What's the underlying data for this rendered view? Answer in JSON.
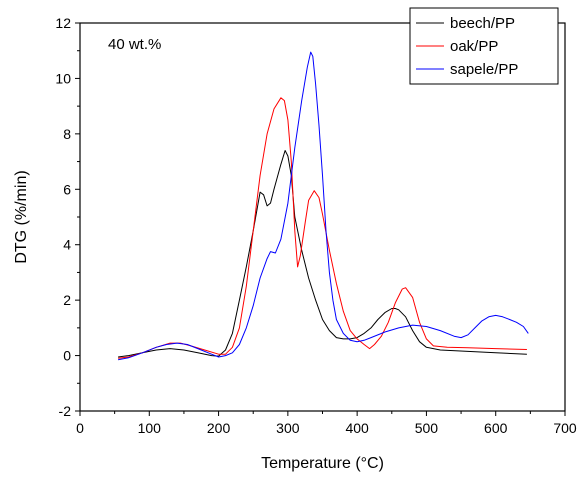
{
  "chart_data": {
    "type": "line",
    "title": "",
    "xlabel": "Temperature (°C)",
    "ylabel": "DTG (%/min)",
    "xlim": [
      0,
      700
    ],
    "ylim": [
      -2,
      12
    ],
    "xticks": [
      0,
      100,
      200,
      300,
      400,
      500,
      600,
      700
    ],
    "yticks": [
      -2,
      0,
      2,
      4,
      6,
      8,
      10,
      12
    ],
    "annotation": "40 wt.%",
    "legend_position": "top-right",
    "grid": false,
    "series": [
      {
        "name": "beech/PP",
        "color": "#000000",
        "points": [
          [
            55,
            -0.05
          ],
          [
            70,
            0.0
          ],
          [
            90,
            0.1
          ],
          [
            110,
            0.2
          ],
          [
            130,
            0.25
          ],
          [
            150,
            0.2
          ],
          [
            170,
            0.1
          ],
          [
            190,
            0.0
          ],
          [
            200,
            -0.02
          ],
          [
            210,
            0.2
          ],
          [
            220,
            0.8
          ],
          [
            230,
            2.0
          ],
          [
            240,
            3.2
          ],
          [
            250,
            4.5
          ],
          [
            260,
            5.9
          ],
          [
            265,
            5.8
          ],
          [
            270,
            5.4
          ],
          [
            275,
            5.5
          ],
          [
            280,
            6.0
          ],
          [
            290,
            6.9
          ],
          [
            296,
            7.4
          ],
          [
            300,
            7.2
          ],
          [
            305,
            6.5
          ],
          [
            310,
            5.0
          ],
          [
            320,
            3.8
          ],
          [
            330,
            2.8
          ],
          [
            340,
            2.0
          ],
          [
            350,
            1.3
          ],
          [
            360,
            0.9
          ],
          [
            370,
            0.65
          ],
          [
            380,
            0.6
          ],
          [
            390,
            0.6
          ],
          [
            400,
            0.65
          ],
          [
            410,
            0.8
          ],
          [
            420,
            1.0
          ],
          [
            430,
            1.3
          ],
          [
            440,
            1.55
          ],
          [
            450,
            1.7
          ],
          [
            455,
            1.7
          ],
          [
            460,
            1.65
          ],
          [
            470,
            1.4
          ],
          [
            480,
            0.9
          ],
          [
            490,
            0.5
          ],
          [
            500,
            0.3
          ],
          [
            520,
            0.2
          ],
          [
            560,
            0.15
          ],
          [
            600,
            0.1
          ],
          [
            645,
            0.05
          ]
        ]
      },
      {
        "name": "oak/PP",
        "color": "#ff0000",
        "points": [
          [
            55,
            -0.1
          ],
          [
            70,
            -0.05
          ],
          [
            90,
            0.1
          ],
          [
            110,
            0.3
          ],
          [
            130,
            0.45
          ],
          [
            145,
            0.45
          ],
          [
            160,
            0.35
          ],
          [
            180,
            0.2
          ],
          [
            200,
            0.05
          ],
          [
            210,
            0.05
          ],
          [
            220,
            0.3
          ],
          [
            230,
            1.0
          ],
          [
            240,
            2.5
          ],
          [
            250,
            4.5
          ],
          [
            260,
            6.5
          ],
          [
            270,
            8.0
          ],
          [
            280,
            8.9
          ],
          [
            290,
            9.3
          ],
          [
            295,
            9.2
          ],
          [
            300,
            8.5
          ],
          [
            305,
            7.0
          ],
          [
            310,
            4.5
          ],
          [
            314,
            3.2
          ],
          [
            318,
            3.6
          ],
          [
            325,
            4.8
          ],
          [
            330,
            5.6
          ],
          [
            338,
            5.95
          ],
          [
            345,
            5.7
          ],
          [
            350,
            5.1
          ],
          [
            360,
            3.8
          ],
          [
            370,
            2.6
          ],
          [
            380,
            1.6
          ],
          [
            390,
            0.9
          ],
          [
            400,
            0.6
          ],
          [
            410,
            0.4
          ],
          [
            418,
            0.25
          ],
          [
            425,
            0.4
          ],
          [
            435,
            0.7
          ],
          [
            445,
            1.2
          ],
          [
            455,
            1.9
          ],
          [
            465,
            2.4
          ],
          [
            470,
            2.45
          ],
          [
            480,
            2.1
          ],
          [
            490,
            1.2
          ],
          [
            500,
            0.6
          ],
          [
            510,
            0.35
          ],
          [
            530,
            0.3
          ],
          [
            560,
            0.28
          ],
          [
            600,
            0.25
          ],
          [
            645,
            0.22
          ]
        ]
      },
      {
        "name": "sapele/PP",
        "color": "#0000ff",
        "points": [
          [
            55,
            -0.15
          ],
          [
            70,
            -0.08
          ],
          [
            90,
            0.1
          ],
          [
            110,
            0.3
          ],
          [
            125,
            0.4
          ],
          [
            140,
            0.45
          ],
          [
            155,
            0.4
          ],
          [
            170,
            0.25
          ],
          [
            190,
            0.05
          ],
          [
            200,
            -0.05
          ],
          [
            210,
            0.0
          ],
          [
            220,
            0.1
          ],
          [
            230,
            0.4
          ],
          [
            240,
            1.0
          ],
          [
            250,
            1.8
          ],
          [
            260,
            2.8
          ],
          [
            270,
            3.5
          ],
          [
            275,
            3.75
          ],
          [
            282,
            3.7
          ],
          [
            290,
            4.2
          ],
          [
            300,
            5.5
          ],
          [
            310,
            7.5
          ],
          [
            320,
            9.2
          ],
          [
            328,
            10.4
          ],
          [
            333,
            10.95
          ],
          [
            336,
            10.8
          ],
          [
            340,
            9.8
          ],
          [
            345,
            8.3
          ],
          [
            350,
            6.5
          ],
          [
            355,
            4.5
          ],
          [
            360,
            3.0
          ],
          [
            365,
            2.0
          ],
          [
            370,
            1.3
          ],
          [
            380,
            0.8
          ],
          [
            390,
            0.55
          ],
          [
            400,
            0.5
          ],
          [
            410,
            0.55
          ],
          [
            420,
            0.65
          ],
          [
            440,
            0.85
          ],
          [
            460,
            1.0
          ],
          [
            480,
            1.1
          ],
          [
            500,
            1.05
          ],
          [
            520,
            0.9
          ],
          [
            540,
            0.7
          ],
          [
            550,
            0.65
          ],
          [
            560,
            0.75
          ],
          [
            570,
            1.0
          ],
          [
            580,
            1.25
          ],
          [
            590,
            1.4
          ],
          [
            600,
            1.45
          ],
          [
            610,
            1.4
          ],
          [
            620,
            1.3
          ],
          [
            630,
            1.2
          ],
          [
            640,
            1.05
          ],
          [
            647,
            0.8
          ]
        ]
      }
    ]
  }
}
